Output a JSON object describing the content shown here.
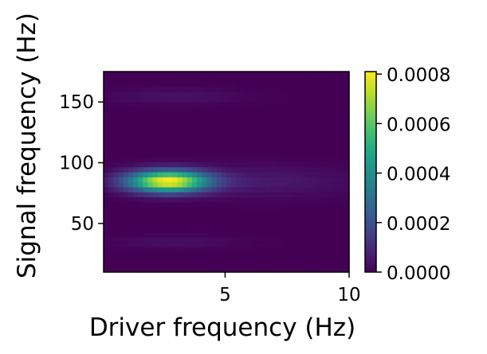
{
  "chart_data": {
    "type": "heatmap",
    "title": "",
    "xlabel": "Driver frequency (Hz)",
    "ylabel": "Signal frequency (Hz)",
    "xlim": [
      0.1,
      10
    ],
    "ylim": [
      10,
      175
    ],
    "xticks": [
      5,
      10
    ],
    "xtick_labels": [
      "5",
      "10"
    ],
    "yticks": [
      50,
      100,
      150
    ],
    "ytick_labels": [
      "50",
      "100",
      "150"
    ],
    "colormap": "viridis",
    "colorbar": {
      "vmin": 0,
      "vmax": 0.00081,
      "ticks": [
        0,
        0.0002,
        0.0004,
        0.0006,
        0.0008
      ],
      "tick_labels": [
        "0.0000",
        "0.0002",
        "0.0004",
        "0.0006",
        "0.0008"
      ]
    },
    "peak": {
      "x": 2.7,
      "y": 85,
      "value": 0.00081
    },
    "grid": false
  }
}
